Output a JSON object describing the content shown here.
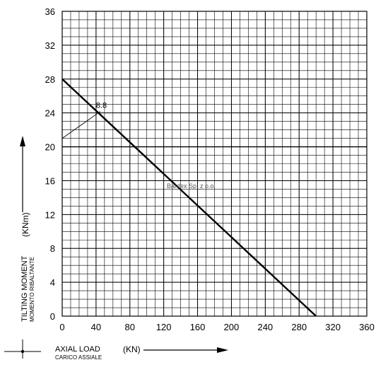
{
  "chart_data": {
    "type": "line",
    "xlim": [
      0,
      360
    ],
    "ylim": [
      0,
      36
    ],
    "x_ticks": [
      "0",
      "40",
      "80",
      "120",
      "160",
      "200",
      "240",
      "280",
      "320",
      "360"
    ],
    "y_ticks": [
      "0",
      "4",
      "8",
      "12",
      "16",
      "20",
      "24",
      "28",
      "32",
      "36"
    ],
    "grid": true,
    "series": [
      {
        "x": [
          0,
          300
        ],
        "y": [
          28,
          0
        ]
      }
    ],
    "annotations": [
      {
        "text": "8.8",
        "x": 45,
        "y": 24
      }
    ],
    "x_label": {
      "main": "AXIAL LOAD",
      "sub": "CARICO ASSIALE",
      "unit": "(KN)"
    },
    "y_label": {
      "main": "TILTING MOMENT",
      "sub": "MOMENTO RIBALTANTE",
      "unit": "(KNm)"
    },
    "watermark": "Bardex Sp. z o.o."
  }
}
